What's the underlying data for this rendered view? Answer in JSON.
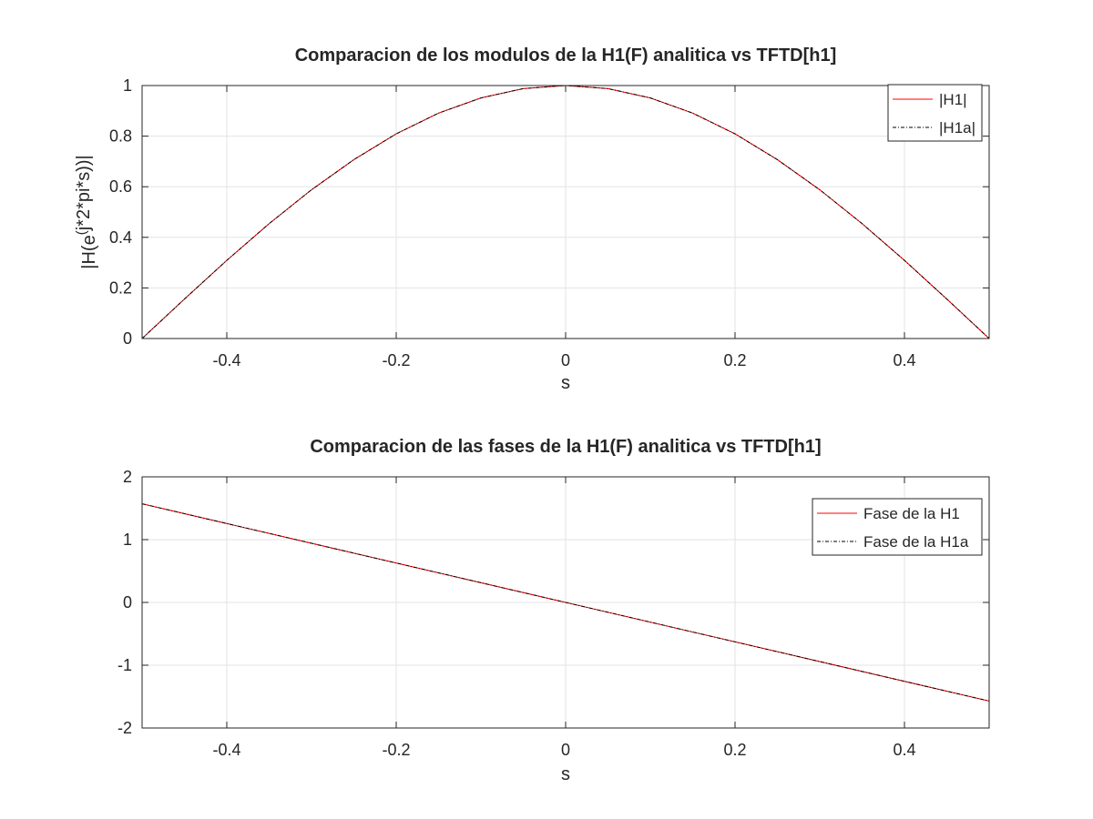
{
  "chart_data": [
    {
      "type": "line",
      "title": "Comparacion de los modulos de la H1(F) analitica vs TFTD[h1]",
      "xlabel": "s",
      "ylabel": "|H(e^(j*2*pi*s))|",
      "ylabel_parts": {
        "base": "|H(e",
        "sup_paren": "(",
        "sup_text": "j*2*pi*s))|"
      },
      "xlim": [
        -0.5,
        0.5
      ],
      "ylim": [
        0,
        1
      ],
      "xticks": [
        -0.4,
        -0.2,
        0,
        0.2,
        0.4
      ],
      "xtick_labels": [
        "-0.4",
        "-0.2",
        "0",
        "0.2",
        "0.4"
      ],
      "yticks": [
        0,
        0.2,
        0.4,
        0.6,
        0.8,
        1
      ],
      "ytick_labels": [
        "0",
        "0.2",
        "0.4",
        "0.6",
        "0.8",
        "1"
      ],
      "grid": true,
      "legend_position": "top-right",
      "x": [
        -0.5,
        -0.45,
        -0.4,
        -0.35,
        -0.3,
        -0.25,
        -0.2,
        -0.15,
        -0.1,
        -0.05,
        0,
        0.05,
        0.1,
        0.15,
        0.2,
        0.25,
        0.3,
        0.35,
        0.4,
        0.45,
        0.5
      ],
      "series": [
        {
          "name": "|H1|",
          "color": "#ff0000",
          "style": "solid",
          "values": [
            0,
            0.156,
            0.309,
            0.454,
            0.588,
            0.707,
            0.809,
            0.891,
            0.951,
            0.988,
            1,
            0.988,
            0.951,
            0.891,
            0.809,
            0.707,
            0.588,
            0.454,
            0.309,
            0.156,
            0
          ]
        },
        {
          "name": "|H1a|",
          "color": "#000000",
          "style": "dashdot",
          "values": [
            0,
            0.156,
            0.309,
            0.454,
            0.588,
            0.707,
            0.809,
            0.891,
            0.951,
            0.988,
            1,
            0.988,
            0.951,
            0.891,
            0.809,
            0.707,
            0.588,
            0.454,
            0.309,
            0.156,
            0
          ]
        }
      ]
    },
    {
      "type": "line",
      "title": "Comparacion de las fases de la H1(F) analitica vs TFTD[h1]",
      "xlabel": "s",
      "ylabel": "",
      "xlim": [
        -0.5,
        0.5
      ],
      "ylim": [
        -2,
        2
      ],
      "xticks": [
        -0.4,
        -0.2,
        0,
        0.2,
        0.4
      ],
      "xtick_labels": [
        "-0.4",
        "-0.2",
        "0",
        "0.2",
        "0.4"
      ],
      "yticks": [
        -2,
        -1,
        0,
        1,
        2
      ],
      "ytick_labels": [
        "-2",
        "-1",
        "0",
        "1",
        "2"
      ],
      "grid": true,
      "legend_position": "top-right",
      "x": [
        -0.5,
        -0.25,
        0,
        0.25,
        0.5
      ],
      "series": [
        {
          "name": "Fase de la H1",
          "color": "#ff0000",
          "style": "solid",
          "values": [
            1.571,
            0.785,
            0,
            -0.785,
            -1.571
          ]
        },
        {
          "name": "Fase de la H1a",
          "color": "#000000",
          "style": "dashdot",
          "values": [
            1.571,
            0.785,
            0,
            -0.785,
            -1.571
          ]
        }
      ]
    }
  ]
}
